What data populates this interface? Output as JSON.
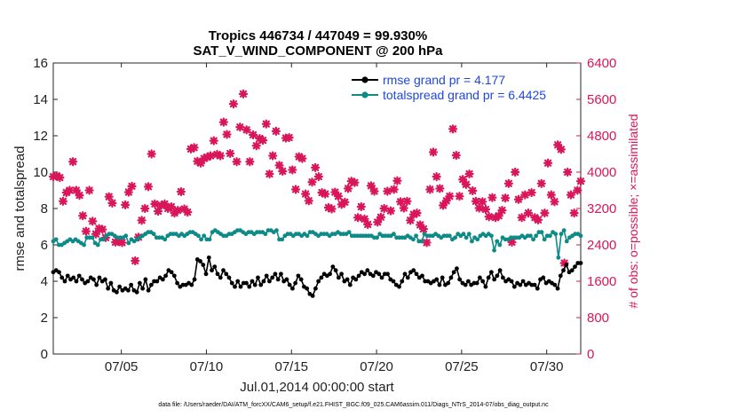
{
  "chart_data": {
    "type": "line",
    "title": "Tropics 446734 / 447049 = 99.930%",
    "subtitle": "SAT_V_WIND_COMPONENT @ 200 hPa",
    "xlabel": "Jul.01,2014 00:00:00 start",
    "ylabel": "rmse and totalspread",
    "y2label": "# of obs: o=possible; ×=assimilated",
    "footer": "data file: /Users/raeder/DAI/ATM_forcXX/CAM6_setup/f.e21.FHIST_BGC.f09_025.CAM6assim.011/Diags_NTrS_2014-07/obs_diag_output.nc",
    "xlim": [
      1.0,
      32.0
    ],
    "ylim": [
      0,
      16
    ],
    "y2lim": [
      0,
      6400
    ],
    "x_ticks": [
      5,
      10,
      15,
      20,
      25,
      30
    ],
    "x_tick_labels": [
      "07/05",
      "07/10",
      "07/15",
      "07/20",
      "07/25",
      "07/30"
    ],
    "y_ticks": [
      0,
      2,
      4,
      6,
      8,
      10,
      12,
      14,
      16
    ],
    "y2_ticks": [
      0,
      800,
      1600,
      2400,
      3200,
      4000,
      4800,
      5600,
      6400
    ],
    "legend_position": "top-right",
    "colors": {
      "rmse": "#000000",
      "spread": "#0e8a87",
      "obs": "#d9165a",
      "legend_text": "#1f47e0"
    },
    "series": [
      {
        "name": "rmse grand pr = 4.177",
        "axis": "left",
        "values": [
          4.5,
          4.6,
          4.5,
          4.2,
          4.0,
          4.3,
          4.1,
          4.2,
          4.0,
          4.3,
          4.1,
          3.9,
          4.0,
          4.2,
          4.1,
          3.8,
          4.2,
          4.0,
          4.1,
          3.6,
          3.9,
          3.5,
          3.4,
          3.7,
          3.5,
          3.6,
          3.5,
          3.8,
          3.5,
          3.4,
          3.9,
          3.6,
          4.1,
          3.5,
          3.8,
          4.0,
          4.0,
          4.2,
          4.1,
          4.3,
          4.6,
          4.5,
          4.3,
          3.9,
          3.7,
          3.8,
          3.8,
          3.9,
          3.8,
          4.1,
          5.2,
          5.1,
          4.9,
          4.4,
          5.3,
          4.6,
          4.8,
          4.4,
          4.2,
          4.6,
          4.4,
          4.2,
          3.9,
          3.7,
          4.0,
          3.7,
          3.9,
          3.9,
          3.7,
          4.0,
          3.8,
          4.2,
          3.8,
          4.0,
          4.3,
          4.0,
          4.2,
          4.4,
          4.1,
          4.4,
          4.0,
          4.1,
          3.8,
          3.6,
          3.9,
          4.3,
          4.1,
          3.7,
          3.6,
          3.3,
          3.2,
          3.6,
          4.0,
          4.2,
          4.4,
          4.3,
          4.4,
          4.8,
          4.6,
          4.2,
          4.4,
          4.0,
          4.1,
          3.8,
          4.2,
          4.1,
          4.3,
          4.5,
          4.4,
          4.6,
          4.4,
          4.3,
          4.5,
          4.4,
          4.2,
          4.4,
          4.4,
          4.1,
          4.0,
          3.8,
          3.7,
          4.0,
          4.4,
          4.2,
          4.5,
          4.6,
          4.4,
          4.2,
          4.3,
          4.0,
          4.0,
          3.9,
          4.0,
          4.1,
          3.8,
          4.2,
          3.8,
          3.9,
          4.2,
          4.5,
          4.7,
          4.1,
          3.9,
          3.8,
          4.0,
          3.8,
          3.9,
          3.9,
          4.2,
          4.0,
          3.7,
          4.2,
          4.5,
          4.1,
          4.3,
          4.6,
          4.2,
          4.0,
          4.1,
          4.0,
          3.7,
          3.9,
          3.8,
          4.0,
          3.8,
          3.9,
          3.8,
          3.8,
          3.6,
          4.1,
          4.2,
          3.9,
          4.0,
          3.9,
          3.8,
          3.6,
          4.3,
          4.6,
          4.9,
          4.5,
          4.6,
          4.8,
          5.0,
          5.0
        ]
      },
      {
        "name": "totalspread grand pr = 6.4425",
        "axis": "left",
        "values": [
          6.2,
          6.3,
          6.0,
          6.0,
          6.1,
          6.2,
          6.3,
          6.2,
          6.3,
          6.2,
          6.1,
          6.0,
          6.4,
          6.4,
          6.4,
          6.1,
          6.0,
          6.3,
          6.3,
          6.5,
          6.6,
          6.6,
          6.5,
          6.4,
          6.4,
          6.4,
          6.5,
          6.1,
          6.3,
          6.2,
          6.3,
          6.4,
          6.5,
          6.6,
          6.7,
          6.7,
          6.6,
          6.4,
          6.4,
          6.4,
          6.3,
          6.5,
          6.6,
          6.6,
          6.6,
          6.5,
          6.6,
          6.5,
          6.6,
          6.7,
          6.7,
          6.6,
          6.5,
          6.3,
          6.5,
          6.3,
          6.3,
          6.7,
          6.8,
          6.7,
          6.6,
          6.5,
          6.5,
          6.6,
          6.6,
          6.7,
          6.8,
          6.8,
          6.7,
          6.6,
          6.7,
          6.7,
          6.6,
          6.7,
          6.7,
          6.7,
          6.6,
          6.8,
          6.8,
          6.7,
          6.8,
          6.3,
          6.3,
          6.5,
          6.6,
          6.6,
          6.5,
          6.6,
          6.6,
          6.5,
          6.6,
          6.5,
          6.7,
          6.7,
          6.6,
          6.5,
          6.6,
          6.6,
          6.6,
          6.5,
          6.6,
          6.6,
          6.7,
          6.6,
          6.6,
          6.6,
          6.7,
          6.5,
          6.5,
          6.5,
          6.5,
          6.5,
          6.5,
          6.5,
          6.5,
          6.4,
          6.4,
          6.6,
          6.5,
          6.5,
          6.5,
          6.5,
          6.6,
          6.4,
          6.4,
          6.4,
          6.4,
          6.5,
          6.4,
          6.3,
          6.5,
          6.2,
          6.2,
          6.6,
          6.5,
          6.5,
          6.5,
          6.6,
          6.5,
          6.4,
          6.5,
          6.5,
          6.5,
          6.3,
          6.4,
          6.6,
          6.5,
          6.6,
          6.4,
          6.6,
          6.2,
          6.4,
          6.3,
          6.5,
          6.6,
          6.5,
          6.6,
          6.5,
          5.7,
          6.2,
          6.0,
          6.4,
          6.3,
          6.3,
          6.4,
          6.4,
          6.4,
          6.4,
          6.5,
          6.4,
          6.5,
          6.5,
          6.3,
          6.5,
          6.7,
          6.7,
          6.3,
          6.5,
          6.5,
          6.7,
          6.6,
          5.3,
          6.6,
          6.8,
          6.2,
          6.4,
          6.5,
          6.6,
          6.6,
          6.5
        ]
      },
      {
        "name": "# of obs assimilated",
        "axis": "right",
        "values": [
          3900,
          3920,
          3880,
          3360,
          3550,
          3600,
          4230,
          3600,
          3490,
          3040,
          2700,
          3600,
          2920,
          2640,
          2760,
          2740,
          2560,
          3460,
          3320,
          2460,
          2480,
          2450,
          3280,
          3560,
          3690,
          2050,
          2570,
          2940,
          3200,
          3680,
          4400,
          3300,
          3140,
          3270,
          3300,
          3200,
          3240,
          3100,
          3160,
          3570,
          3190,
          3120,
          4510,
          4540,
          4240,
          4200,
          4300,
          4330,
          4360,
          4690,
          4390,
          4360,
          5100,
          4830,
          4410,
          5500,
          4230,
          4990,
          5720,
          4930,
          4230,
          4820,
          4580,
          4740,
          4700,
          5060,
          3960,
          4360,
          4900,
          4150,
          4020,
          4750,
          4760,
          4050,
          3620,
          4340,
          4300,
          3520,
          3370,
          3780,
          4100,
          3900,
          3550,
          3520,
          3220,
          3190,
          3560,
          3470,
          3290,
          3340,
          3640,
          3800,
          3770,
          3000,
          3240,
          2970,
          2850,
          3700,
          3580,
          2900,
          3010,
          3200,
          3580,
          3150,
          3620,
          3810,
          3350,
          3210,
          3360,
          2940,
          3070,
          3100,
          2840,
          2750,
          2450,
          3620,
          4440,
          3900,
          3640,
          3270,
          3370,
          3470,
          4950,
          4370,
          3470,
          3840,
          3730,
          3960,
          3590,
          3360,
          3210,
          3350,
          3180,
          3020,
          3440,
          3000,
          3040,
          3160,
          3430,
          3750,
          2460,
          4000,
          3400,
          3000,
          3500,
          3100,
          3550,
          3000,
          2950,
          3750,
          3100,
          4200,
          3500,
          3350,
          4600,
          4500,
          2000,
          4000,
          3500,
          3100,
          3600,
          3800
        ]
      }
    ]
  }
}
